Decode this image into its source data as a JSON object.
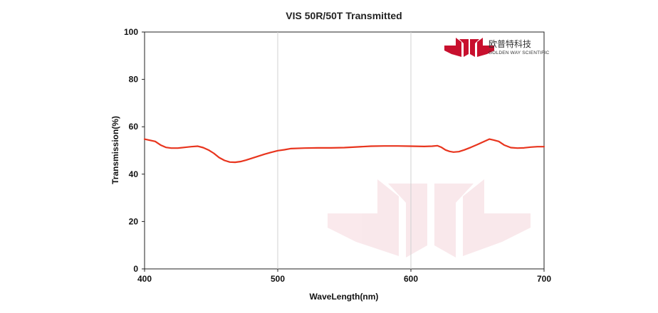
{
  "chart_data": {
    "type": "line",
    "title": "VIS 50R/50T Transmitted",
    "xlabel": "WaveLength(nm)",
    "ylabel": "Transmission(%)",
    "xlim": [
      400,
      700
    ],
    "ylim": [
      0,
      100
    ],
    "x_ticks": [
      400,
      500,
      600,
      700
    ],
    "y_ticks": [
      0,
      20,
      40,
      60,
      80,
      100
    ],
    "grid": "vertical",
    "series": [
      {
        "color": "#e8351e",
        "x": [
          400,
          404,
          408,
          412,
          416,
          420,
          425,
          430,
          435,
          440,
          444,
          448,
          452,
          456,
          460,
          464,
          468,
          472,
          476,
          480,
          485,
          490,
          495,
          500,
          505,
          510,
          520,
          530,
          540,
          550,
          560,
          570,
          580,
          590,
          600,
          610,
          616,
          620,
          623,
          626,
          629,
          632,
          636,
          640,
          645,
          650,
          655,
          659,
          662,
          666,
          670,
          675,
          680,
          685,
          690,
          695,
          700
        ],
        "y": [
          54.8,
          54.3,
          53.8,
          52.3,
          51.3,
          51.0,
          51.0,
          51.3,
          51.6,
          51.8,
          51.2,
          50.2,
          48.8,
          47.0,
          45.8,
          45.1,
          45.0,
          45.3,
          45.9,
          46.6,
          47.5,
          48.4,
          49.2,
          49.9,
          50.3,
          50.8,
          51.0,
          51.1,
          51.1,
          51.2,
          51.5,
          51.8,
          51.9,
          51.9,
          51.8,
          51.7,
          51.8,
          52.0,
          51.3,
          50.2,
          49.6,
          49.3,
          49.5,
          50.2,
          51.3,
          52.5,
          53.8,
          54.8,
          54.4,
          53.8,
          52.3,
          51.2,
          51.0,
          51.1,
          51.4,
          51.6,
          51.6
        ]
      }
    ]
  },
  "brand": {
    "name_cn": "欧普特科技",
    "name_en": "GOLDEN WAY SCIENTIFIC",
    "color": "#c8102e"
  }
}
